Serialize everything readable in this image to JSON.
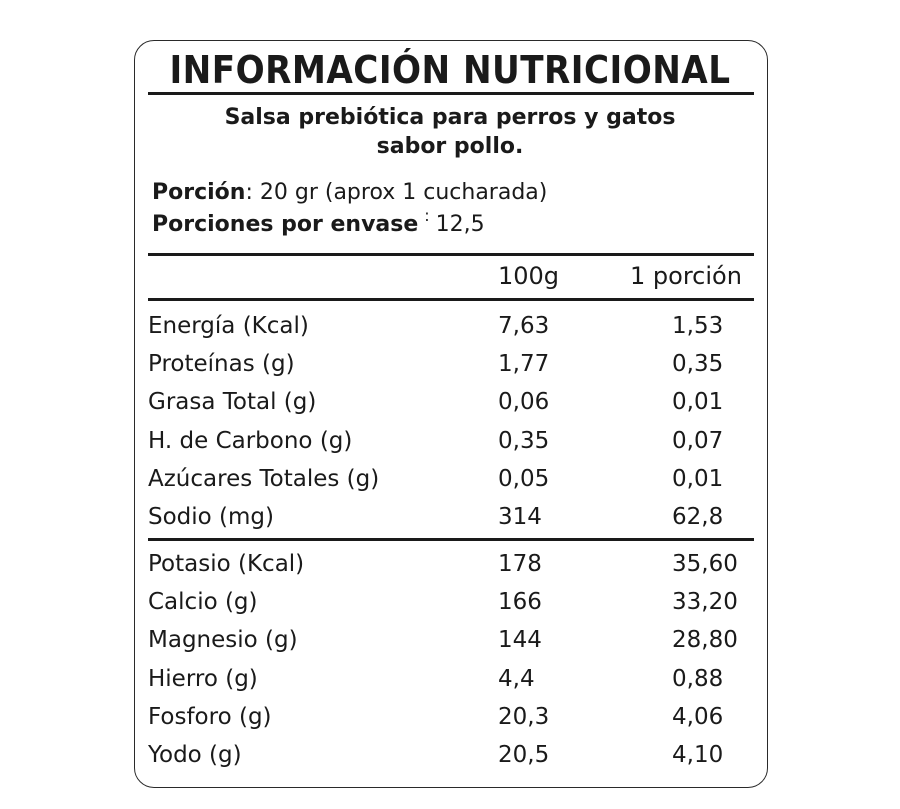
{
  "title": "INFORMACIÓN NUTRICIONAL",
  "product": {
    "line1": "Salsa prebiótica para perros y gatos",
    "line2": "sabor pollo."
  },
  "portion": {
    "label": "Porción",
    "separator": ":",
    "value": "20 gr (aprox 1 cucharada)"
  },
  "portions_per_pack": {
    "label": "Porciones por envase",
    "separator": ":",
    "value": "12,5"
  },
  "columns": {
    "per_100g": "100g",
    "per_portion": "1 porción"
  },
  "group1": [
    {
      "name": "Energía (Kcal)",
      "per_100g": "7,63",
      "per_portion": "1,53"
    },
    {
      "name": "Proteínas (g)",
      "per_100g": "1,77",
      "per_portion": "0,35"
    },
    {
      "name": "Grasa Total (g)",
      "per_100g": "0,06",
      "per_portion": "0,01"
    },
    {
      "name": "H. de Carbono (g)",
      "per_100g": "0,35",
      "per_portion": "0,07"
    },
    {
      "name": "Azúcares Totales (g)",
      "per_100g": "0,05",
      "per_portion": "0,01"
    },
    {
      "name": "Sodio (mg)",
      "per_100g": "314",
      "per_portion": "62,8"
    }
  ],
  "group2": [
    {
      "name": "Potasio (Kcal)",
      "per_100g": "178",
      "per_portion": "35,60"
    },
    {
      "name": "Calcio (g)",
      "per_100g": "166",
      "per_portion": "33,20"
    },
    {
      "name": "Magnesio (g)",
      "per_100g": "144",
      "per_portion": "28,80"
    },
    {
      "name": "Hierro (g)",
      "per_100g": "4,4",
      "per_portion": "0,88"
    },
    {
      "name": "Fosforo (g)",
      "per_100g": "20,3",
      "per_portion": "4,06"
    },
    {
      "name": "Yodo (g)",
      "per_100g": "20,5",
      "per_portion": "4,10"
    }
  ]
}
